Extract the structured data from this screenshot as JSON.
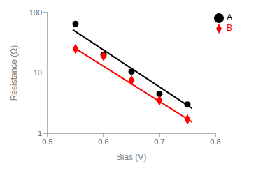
{
  "chart_data": {
    "type": "scatter",
    "xlabel": "Bias (V)",
    "ylabel": "Resistance (Ω)",
    "xlim": [
      0.5,
      0.8
    ],
    "ylim": [
      1,
      100
    ],
    "xticks": [
      0.5,
      0.6,
      0.7,
      0.8
    ],
    "yticks": [
      1,
      10,
      100
    ],
    "log": "y",
    "grid": false,
    "legend": "upper right",
    "series": [
      {
        "type": "line",
        "color": "#000000",
        "x": [
          0.545,
          0.758
        ],
        "values": [
          52,
          2.6
        ]
      },
      {
        "type": "line",
        "color": "#ff0000",
        "x": [
          0.545,
          0.758
        ],
        "values": [
          27,
          1.55
        ]
      },
      {
        "type": "scatter",
        "name": "A",
        "color": "#000000",
        "marker": "circle",
        "x": [
          0.55,
          0.6,
          0.65,
          0.7,
          0.75
        ],
        "values": [
          65,
          20,
          10.5,
          4.5,
          3.0
        ]
      },
      {
        "type": "scatter",
        "name": "B",
        "color": "#ff0000",
        "marker": "diamond",
        "x": [
          0.55,
          0.6,
          0.65,
          0.7,
          0.75
        ],
        "values": [
          25,
          19,
          7.5,
          3.5,
          1.7
        ]
      }
    ]
  }
}
